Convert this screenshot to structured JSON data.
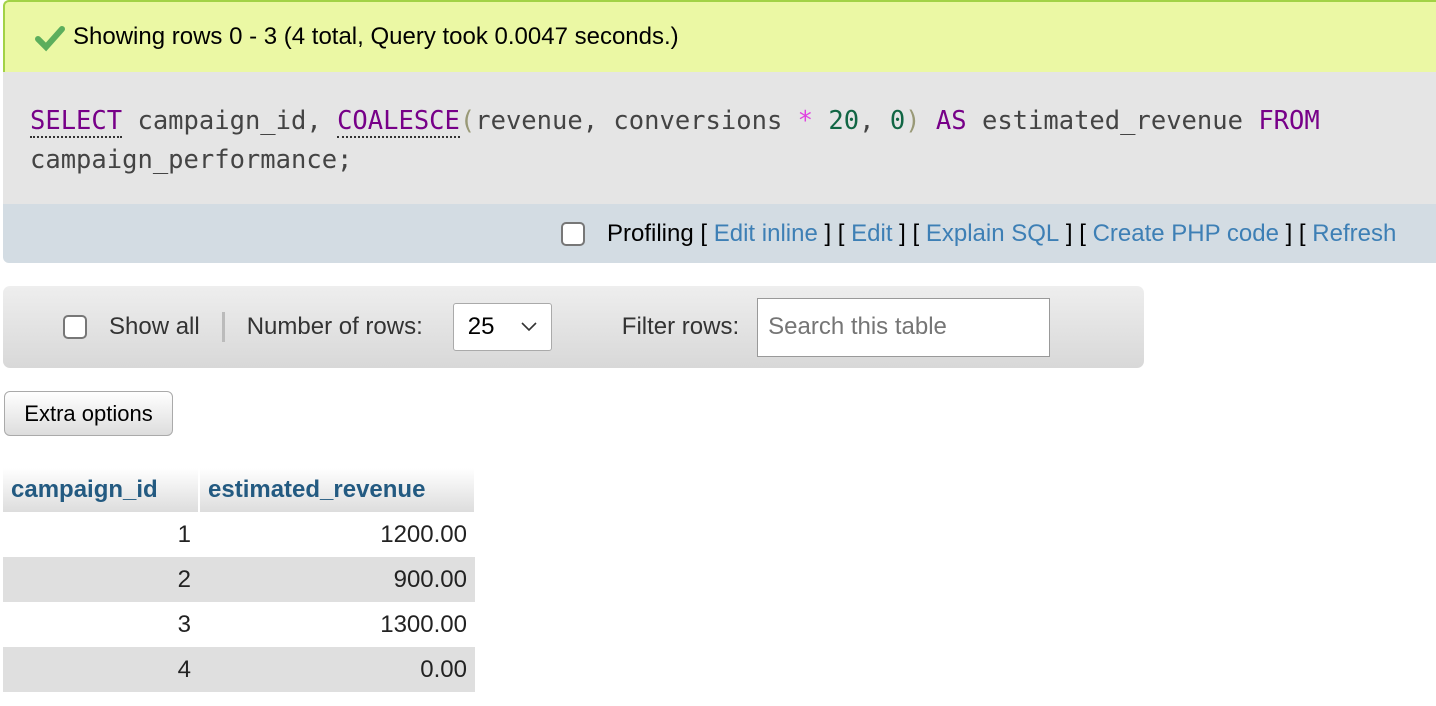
{
  "status": {
    "icon": "check-icon",
    "message": "Showing rows 0 - 3 (4 total, Query took 0.0047 seconds.)"
  },
  "sql": {
    "kw_select": "SELECT",
    "t1": " campaign_id, ",
    "fn_coalesce": "COALESCE",
    "p_open": "(",
    "t2": "revenue, conversions ",
    "op": "*",
    "t3": " ",
    "n20": "20",
    "t4": ", ",
    "n0": "0",
    "p_close": ")",
    "t5": " ",
    "kw_as": "AS",
    "t6": " estimated_revenue ",
    "kw_from": "FROM",
    "line2": "campaign_performance;"
  },
  "toolbar": {
    "profiling": "Profiling",
    "links": [
      "Edit inline",
      "Edit",
      "Explain SQL",
      "Create PHP code",
      "Refresh"
    ]
  },
  "nav": {
    "show_all": "Show all",
    "rows_label": "Number of rows:",
    "rows_value": "25",
    "filter_label": "Filter rows:",
    "search_placeholder": "Search this table"
  },
  "extra_options": "Extra options",
  "table": {
    "columns": [
      "campaign_id",
      "estimated_revenue"
    ],
    "rows": [
      [
        "1",
        "1200.00"
      ],
      [
        "2",
        "900.00"
      ],
      [
        "3",
        "1300.00"
      ],
      [
        "4",
        "0.00"
      ]
    ]
  }
}
